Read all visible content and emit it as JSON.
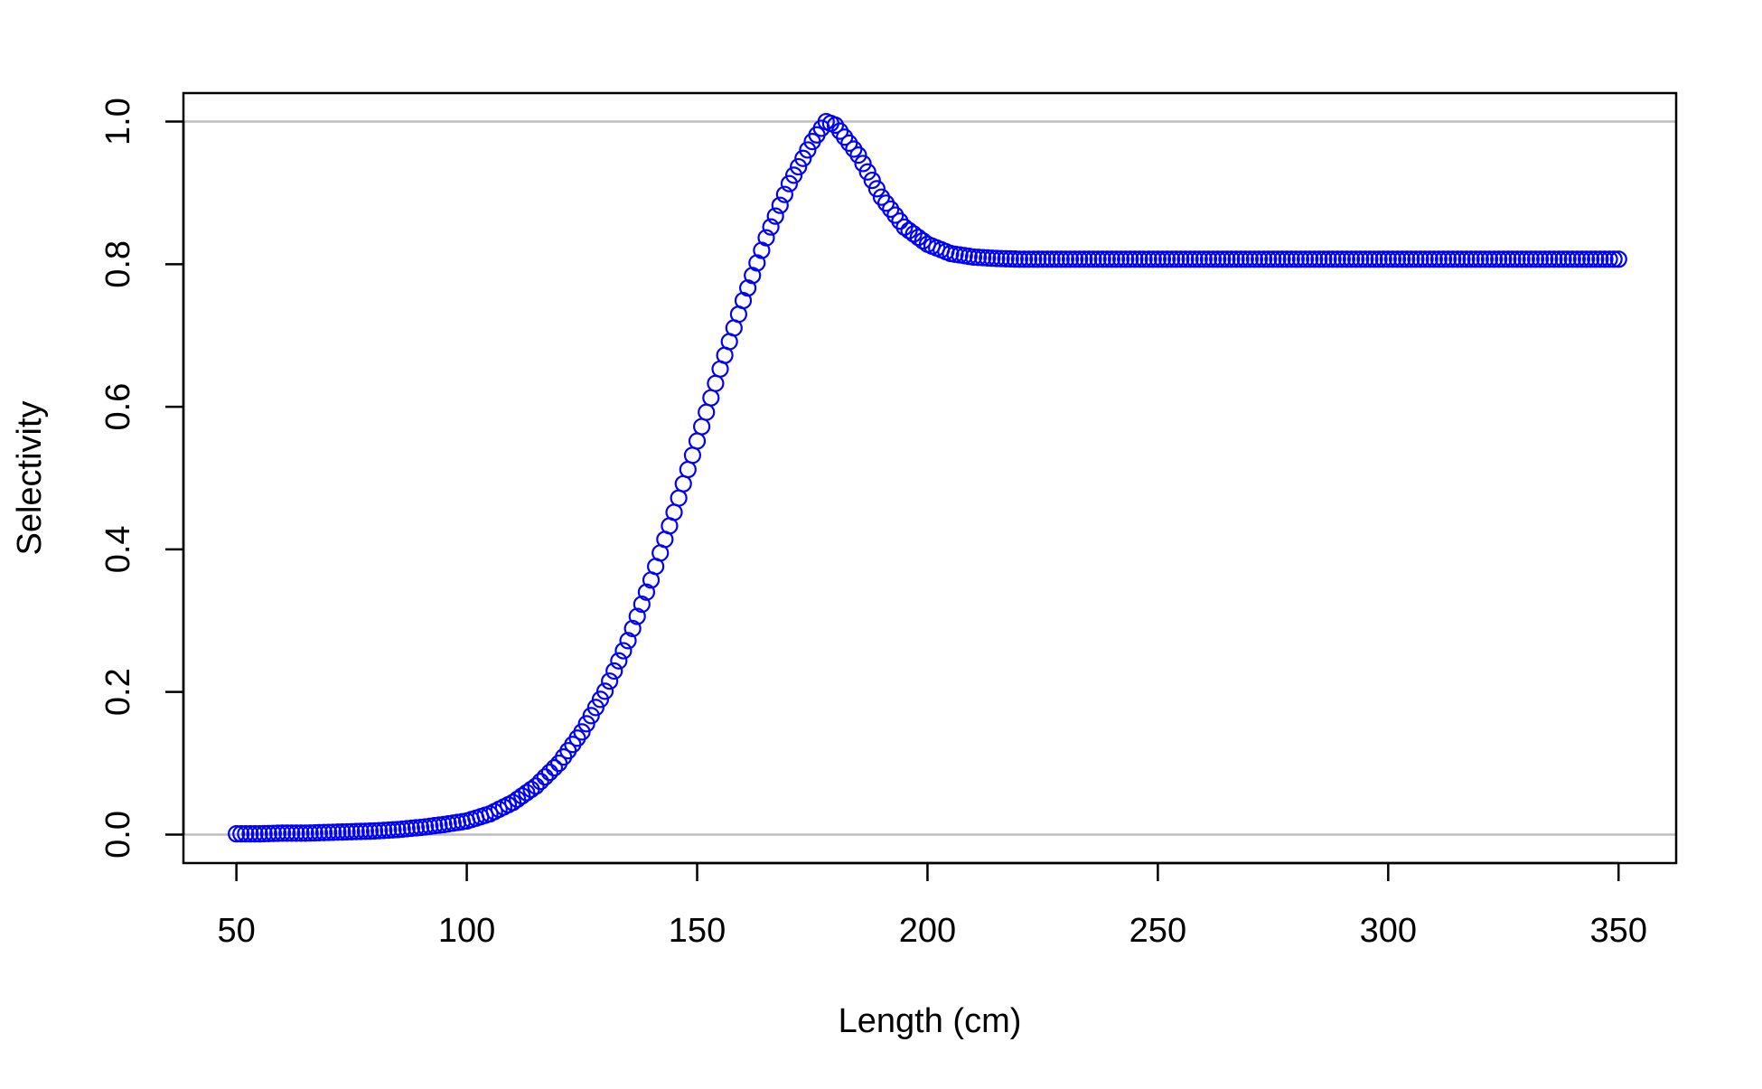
{
  "chart_data": {
    "type": "scatter",
    "title": "",
    "xlabel": "Length (cm)",
    "ylabel": "Selectivity",
    "xlim": [
      38.5,
      362.5
    ],
    "ylim": [
      -0.04,
      1.04
    ],
    "xticks": [
      {
        "value": 50,
        "label": "50"
      },
      {
        "value": 100,
        "label": "100"
      },
      {
        "value": 150,
        "label": "150"
      },
      {
        "value": 200,
        "label": "200"
      },
      {
        "value": 250,
        "label": "250"
      },
      {
        "value": 300,
        "label": "300"
      },
      {
        "value": 350,
        "label": "350"
      }
    ],
    "yticks": [
      {
        "value": 0.0,
        "label": "0.0"
      },
      {
        "value": 0.2,
        "label": "0.2"
      },
      {
        "value": 0.4,
        "label": "0.4"
      },
      {
        "value": 0.6,
        "label": "0.6"
      },
      {
        "value": 0.8,
        "label": "0.8"
      },
      {
        "value": 1.0,
        "label": "1.0"
      }
    ],
    "reference_lines": [
      {
        "y": 0.0,
        "color": "#bebebe"
      },
      {
        "y": 1.0,
        "color": "#bebebe"
      }
    ],
    "marker": "open-circle",
    "marker_color": "#0000ff",
    "grid": false,
    "legend": "none",
    "series": [
      {
        "x": [
          50,
          55,
          60,
          65,
          70,
          75,
          80,
          85,
          90,
          95,
          100,
          105,
          110,
          115,
          120,
          125,
          130,
          135,
          140,
          145,
          150,
          155,
          160,
          165,
          170,
          175,
          178,
          180,
          185,
          190,
          195,
          200,
          205,
          210,
          215,
          220,
          230,
          240,
          250,
          260,
          270,
          280,
          290,
          300,
          310,
          320,
          330,
          340,
          350
        ],
        "y": [
          0.001,
          0.001,
          0.002,
          0.002,
          0.003,
          0.004,
          0.005,
          0.007,
          0.01,
          0.014,
          0.019,
          0.029,
          0.045,
          0.068,
          0.1,
          0.144,
          0.201,
          0.272,
          0.357,
          0.452,
          0.552,
          0.653,
          0.749,
          0.837,
          0.913,
          0.972,
          1.0,
          0.995,
          0.953,
          0.894,
          0.852,
          0.828,
          0.815,
          0.81,
          0.808,
          0.807,
          0.807,
          0.807,
          0.807,
          0.807,
          0.807,
          0.807,
          0.807,
          0.807,
          0.807,
          0.807,
          0.807,
          0.807,
          0.807
        ]
      }
    ]
  }
}
